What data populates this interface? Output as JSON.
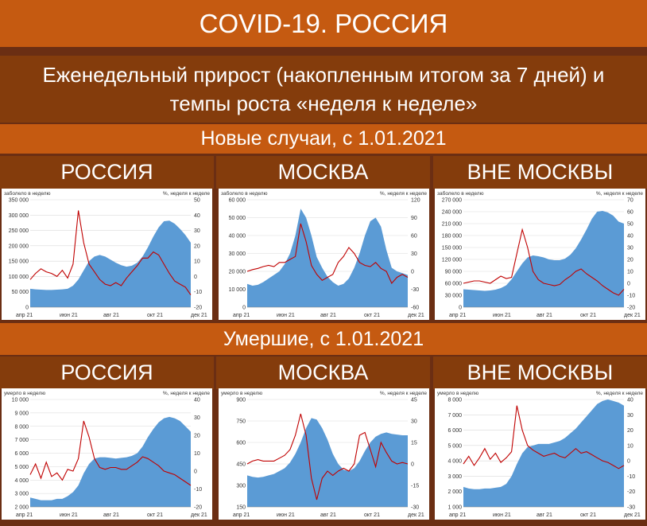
{
  "header": {
    "title": "COVID-19. РОССИЯ",
    "subtitle": "Еженедельный прирост (накопленным итогом за 7 дней) и темпы роста «неделя к неделе»",
    "section_cases": "Новые случаи, с 1.01.2021",
    "section_deaths": "Умершие, с 1.01.2021"
  },
  "columns": [
    "РОССИЯ",
    "МОСКВА",
    "ВНЕ МОСКВЫ"
  ],
  "colors": {
    "area": "#5b9bd5",
    "line": "#c00000",
    "title_band": "#c55a11",
    "dark_band": "#843c0c"
  },
  "chart_data": [
    {
      "type": "area",
      "section": "cases",
      "column": "РОССИЯ",
      "left_caption": "заболело в неделю",
      "right_caption": "%, неделя к неделе",
      "x_ticks": [
        "апр 21",
        "июн 21",
        "авг 21",
        "окт 21",
        "дек 21"
      ],
      "y_left_ticks": [
        "0",
        "50 000",
        "100 000",
        "150 000",
        "200 000",
        "250 000",
        "300 000",
        "350 000"
      ],
      "y_right_ticks": [
        "-20",
        "-10",
        "0",
        "10",
        "20",
        "30",
        "40",
        "50"
      ],
      "ylim_left": [
        0,
        350000
      ],
      "ylim_right": [
        -20,
        50
      ],
      "series": [
        {
          "name": "",
          "axis": "left",
          "kind": "area",
          "values": [
            60000,
            58000,
            57000,
            56000,
            56000,
            57000,
            58000,
            60000,
            70000,
            90000,
            120000,
            150000,
            165000,
            170000,
            165000,
            155000,
            145000,
            137000,
            132000,
            135000,
            145000,
            165000,
            195000,
            230000,
            260000,
            280000,
            282000,
            272000,
            255000,
            235000,
            210000
          ]
        },
        {
          "name": "",
          "axis": "right",
          "kind": "line",
          "values": [
            -2,
            2,
            5,
            3,
            2,
            0,
            4,
            -1,
            8,
            43,
            22,
            8,
            3,
            -2,
            -5,
            -6,
            -4,
            -6,
            -1,
            3,
            7,
            12,
            12,
            16,
            14,
            8,
            2,
            -3,
            -5,
            -7,
            -12
          ]
        }
      ]
    },
    {
      "type": "area",
      "section": "cases",
      "column": "МОСКВА",
      "left_caption": "заболело в неделю",
      "right_caption": "%, неделя к неделе",
      "x_ticks": [
        "апр 21",
        "июн 21",
        "авг 21",
        "окт 21",
        "дек 21"
      ],
      "y_left_ticks": [
        "0",
        "10 000",
        "20 000",
        "30 000",
        "40 000",
        "50 000",
        "60 000"
      ],
      "y_right_ticks": [
        "-60",
        "-30",
        "0",
        "30",
        "60",
        "90",
        "120"
      ],
      "ylim_left": [
        0,
        60000
      ],
      "ylim_right": [
        -60,
        120
      ],
      "series": [
        {
          "name": "",
          "axis": "left",
          "kind": "area",
          "values": [
            13000,
            12000,
            12500,
            14000,
            16000,
            18000,
            20000,
            24000,
            30000,
            40000,
            55000,
            50000,
            40000,
            28000,
            22000,
            17000,
            14000,
            12000,
            13000,
            16000,
            22000,
            30000,
            40000,
            48000,
            50000,
            45000,
            32000,
            22000,
            20000,
            19000,
            18000
          ]
        },
        {
          "name": "",
          "axis": "right",
          "kind": "line",
          "values": [
            0,
            3,
            5,
            8,
            10,
            8,
            15,
            15,
            20,
            25,
            80,
            50,
            10,
            -5,
            -15,
            -10,
            -5,
            15,
            25,
            40,
            30,
            15,
            10,
            8,
            15,
            5,
            0,
            -20,
            -10,
            -5,
            -10
          ]
        }
      ]
    },
    {
      "type": "area",
      "section": "cases",
      "column": "ВНЕ МОСКВЫ",
      "left_caption": "заболело в неделю",
      "right_caption": "%, неделя к неделе",
      "x_ticks": [
        "апр 21",
        "июн 21",
        "авг 21",
        "окт 21",
        "дек 21"
      ],
      "y_left_ticks": [
        "0",
        "30 000",
        "60 000",
        "90 000",
        "120 000",
        "150 000",
        "180 000",
        "210 000",
        "240 000",
        "270 000"
      ],
      "y_right_ticks": [
        "-20",
        "-10",
        "0",
        "10",
        "20",
        "30",
        "40",
        "50",
        "60",
        "70"
      ],
      "ylim_left": [
        0,
        270000
      ],
      "ylim_right": [
        -20,
        70
      ],
      "series": [
        {
          "name": "",
          "axis": "left",
          "kind": "area",
          "values": [
            45000,
            44000,
            43000,
            42000,
            41000,
            42000,
            44000,
            48000,
            55000,
            70000,
            90000,
            110000,
            125000,
            130000,
            128000,
            125000,
            120000,
            118000,
            118000,
            122000,
            132000,
            148000,
            170000,
            195000,
            222000,
            240000,
            242000,
            238000,
            230000,
            215000,
            210000
          ]
        },
        {
          "name": "",
          "axis": "right",
          "kind": "line",
          "values": [
            0,
            1,
            2,
            2,
            1,
            0,
            3,
            6,
            4,
            5,
            25,
            45,
            30,
            10,
            3,
            0,
            -1,
            -2,
            -1,
            3,
            6,
            10,
            12,
            8,
            5,
            2,
            -2,
            -5,
            -8,
            -10,
            -5
          ]
        }
      ]
    },
    {
      "type": "area",
      "section": "deaths",
      "column": "РОССИЯ",
      "left_caption": "умерло в неделю",
      "right_caption": "%, неделя к неделе",
      "x_ticks": [
        "апр 21",
        "июн 21",
        "авг 21",
        "окт 21",
        "дек 21"
      ],
      "y_left_ticks": [
        "2 000",
        "3 000",
        "4 000",
        "5 000",
        "6 000",
        "7 000",
        "8 000",
        "9 000",
        "10 000"
      ],
      "y_right_ticks": [
        "-20",
        "-10",
        "0",
        "10",
        "20",
        "30",
        "40"
      ],
      "ylim_left": [
        2000,
        10000
      ],
      "ylim_right": [
        -20,
        40
      ],
      "series": [
        {
          "name": "",
          "axis": "left",
          "kind": "area",
          "values": [
            2700,
            2600,
            2500,
            2500,
            2500,
            2600,
            2600,
            2800,
            3100,
            3600,
            4500,
            5200,
            5600,
            5700,
            5700,
            5650,
            5600,
            5650,
            5700,
            5800,
            6000,
            6500,
            7200,
            7800,
            8300,
            8600,
            8700,
            8600,
            8400,
            8000,
            7600
          ]
        },
        {
          "name": "",
          "axis": "right",
          "kind": "line",
          "values": [
            -2,
            4,
            -4,
            5,
            -3,
            -1,
            -5,
            1,
            0,
            7,
            28,
            19,
            7,
            2,
            1,
            2,
            2,
            1,
            1,
            3,
            5,
            8,
            7,
            5,
            3,
            0,
            -1,
            -2,
            -4,
            -6,
            -8
          ]
        }
      ]
    },
    {
      "type": "area",
      "section": "deaths",
      "column": "МОСКВА",
      "left_caption": "умерло в неделю",
      "right_caption": "%, неделя к неделе",
      "x_ticks": [
        "апр 21",
        "июн 21",
        "авг 21",
        "окт 21",
        "дек 21"
      ],
      "y_left_ticks": [
        "150",
        "300",
        "450",
        "600",
        "750",
        "900"
      ],
      "y_right_ticks": [
        "-30",
        "-15",
        "0",
        "15",
        "30",
        "45"
      ],
      "ylim_left": [
        150,
        900
      ],
      "ylim_right": [
        -30,
        45
      ],
      "series": [
        {
          "name": "",
          "axis": "left",
          "kind": "area",
          "values": [
            370,
            360,
            355,
            360,
            370,
            380,
            400,
            420,
            460,
            520,
            600,
            700,
            770,
            760,
            700,
            620,
            520,
            450,
            410,
            400,
            420,
            470,
            540,
            600,
            640,
            660,
            670,
            660,
            655,
            650,
            650
          ]
        },
        {
          "name": "",
          "axis": "right",
          "kind": "line",
          "values": [
            0,
            2,
            3,
            2,
            2,
            2,
            4,
            6,
            10,
            20,
            35,
            20,
            -10,
            -25,
            -10,
            -5,
            -8,
            -5,
            -3,
            -5,
            0,
            20,
            22,
            10,
            -2,
            15,
            8,
            2,
            0,
            1,
            0
          ]
        }
      ]
    },
    {
      "type": "area",
      "section": "deaths",
      "column": "ВНЕ МОСКВЫ",
      "left_caption": "умерло в неделю",
      "right_caption": "%, неделя к неделе",
      "x_ticks": [
        "апр 21",
        "июн 21",
        "авг 21",
        "окт 21",
        "дек 21"
      ],
      "y_left_ticks": [
        "1 000",
        "2 000",
        "3 000",
        "4 000",
        "5 000",
        "6 000",
        "7 000",
        "8 000"
      ],
      "y_right_ticks": [
        "-30",
        "-20",
        "-10",
        "0",
        "10",
        "20",
        "30",
        "40"
      ],
      "ylim_left": [
        1000,
        8000
      ],
      "ylim_right": [
        -30,
        40
      ],
      "series": [
        {
          "name": "",
          "axis": "left",
          "kind": "area",
          "values": [
            2300,
            2200,
            2150,
            2150,
            2200,
            2200,
            2250,
            2300,
            2500,
            3000,
            3800,
            4500,
            4900,
            5000,
            5100,
            5100,
            5100,
            5200,
            5300,
            5500,
            5800,
            6100,
            6500,
            6900,
            7300,
            7700,
            7900,
            8000,
            7900,
            7800,
            7600
          ]
        },
        {
          "name": "",
          "axis": "right",
          "kind": "line",
          "values": [
            -2,
            3,
            -3,
            2,
            8,
            1,
            5,
            -1,
            2,
            6,
            36,
            20,
            10,
            7,
            5,
            3,
            4,
            5,
            3,
            2,
            5,
            8,
            5,
            6,
            4,
            2,
            0,
            -1,
            -3,
            -5,
            -3
          ]
        }
      ]
    }
  ]
}
